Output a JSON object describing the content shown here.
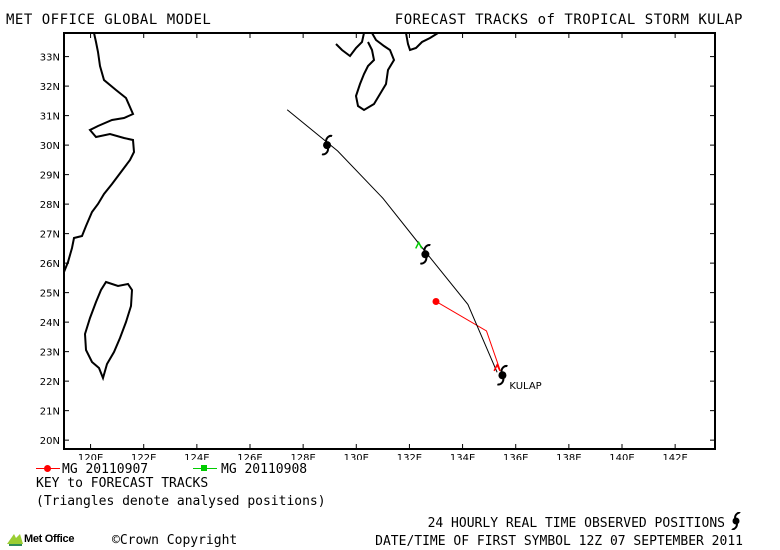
{
  "header": {
    "left": "MET OFFICE GLOBAL MODEL",
    "right": "FORECAST TRACKS of TROPICAL STORM KULAP"
  },
  "map": {
    "lon_range": [
      119,
      143.5
    ],
    "lat_range": [
      19.7,
      33.8
    ],
    "lat_ticks": [
      {
        "value": 33,
        "label": "33N"
      },
      {
        "value": 32,
        "label": "32N"
      },
      {
        "value": 31,
        "label": "31N"
      },
      {
        "value": 30,
        "label": "30N"
      },
      {
        "value": 29,
        "label": "29N"
      },
      {
        "value": 28,
        "label": "28N"
      },
      {
        "value": 27,
        "label": "27N"
      },
      {
        "value": 26,
        "label": "26N"
      },
      {
        "value": 25,
        "label": "25N"
      },
      {
        "value": 24,
        "label": "24N"
      },
      {
        "value": 23,
        "label": "23N"
      },
      {
        "value": 22,
        "label": "22N"
      },
      {
        "value": 21,
        "label": "21N"
      },
      {
        "value": 20,
        "label": "20N"
      }
    ],
    "lon_ticks": [
      {
        "value": 120,
        "label": "120E"
      },
      {
        "value": 122,
        "label": "122E"
      },
      {
        "value": 124,
        "label": "124E"
      },
      {
        "value": 126,
        "label": "126E"
      },
      {
        "value": 128,
        "label": "128E"
      },
      {
        "value": 130,
        "label": "130E"
      },
      {
        "value": 132,
        "label": "132E"
      },
      {
        "value": 134,
        "label": "134E"
      },
      {
        "value": 136,
        "label": "136E"
      },
      {
        "value": 138,
        "label": "138E"
      },
      {
        "value": 140,
        "label": "140E"
      },
      {
        "value": 142,
        "label": "142E"
      }
    ],
    "storm_label": "KULAP",
    "observed_positions": [
      {
        "lon": 135.5,
        "lat": 22.2
      },
      {
        "lon": 132.6,
        "lat": 26.3
      },
      {
        "lon": 128.9,
        "lat": 30.0
      }
    ],
    "tracks": [
      {
        "name": "MG 20110907",
        "color": "#ff0000",
        "marker": "circle",
        "points": [
          {
            "lon": 133.0,
            "lat": 24.7
          },
          {
            "lon": 134.9,
            "lat": 23.7
          },
          {
            "lon": 135.4,
            "lat": 22.4
          }
        ]
      },
      {
        "name": "MG 20110908",
        "color": "#00cc00",
        "marker": "square",
        "points": [
          {
            "lon": 135.3,
            "lat": 22.3
          },
          {
            "lon": 134.2,
            "lat": 24.6
          },
          {
            "lon": 132.5,
            "lat": 26.5
          },
          {
            "lon": 131.0,
            "lat": 28.2
          },
          {
            "lon": 129.3,
            "lat": 29.8
          },
          {
            "lon": 127.4,
            "lat": 31.2
          }
        ]
      }
    ],
    "analysed_triangles": [
      {
        "lon": 135.3,
        "lat": 22.45,
        "color": "#ff0000"
      },
      {
        "lon": 132.35,
        "lat": 26.6,
        "color": "#00cc00"
      }
    ]
  },
  "legend": {
    "items": [
      {
        "label": "MG 20110907",
        "color": "#ff0000",
        "marker": "circle"
      },
      {
        "label": "MG 20110908",
        "color": "#00cc00",
        "marker": "square"
      }
    ],
    "key_title": "KEY to FORECAST TRACKS",
    "key_note": "(Triangles denote analysed positions)"
  },
  "footer": {
    "logo_text": "Met Office",
    "copyright": "Crown Copyright",
    "observed_label": "24 HOURLY REAL TIME OBSERVED POSITIONS",
    "datetime": "DATE/TIME OF FIRST SYMBOL 12Z 07 SEPTEMBER 2011"
  }
}
